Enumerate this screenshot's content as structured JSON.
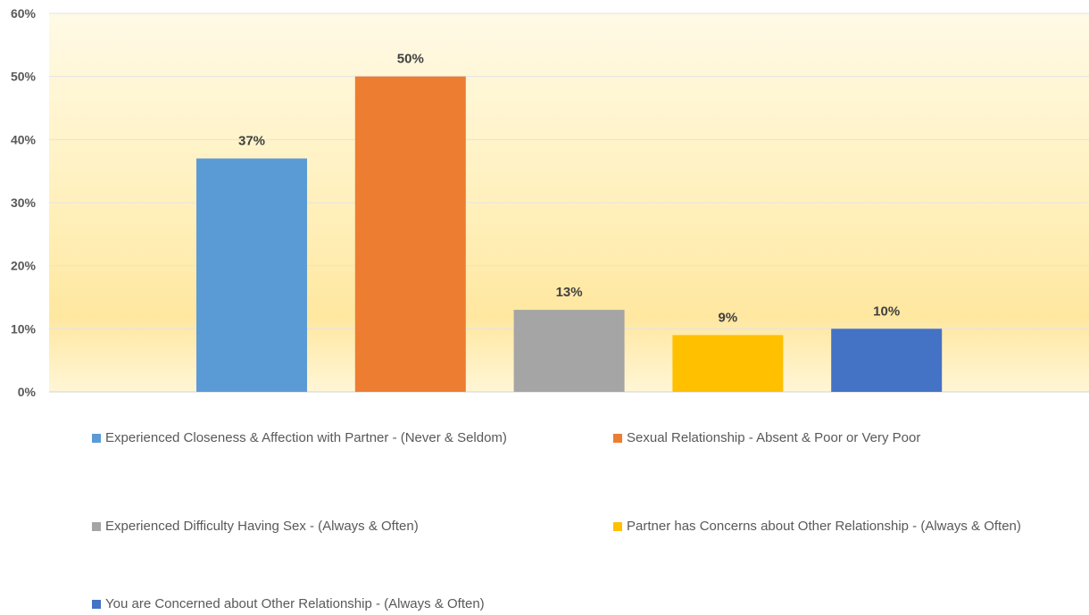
{
  "chart_data": {
    "type": "bar",
    "title": "",
    "xlabel": "",
    "ylabel": "",
    "ylim": [
      0,
      60
    ],
    "yticks": [
      0,
      10,
      20,
      30,
      40,
      50,
      60
    ],
    "ytick_labels": [
      "0%",
      "10%",
      "20%",
      "30%",
      "40%",
      "50%",
      "60%"
    ],
    "grid": true,
    "legend_position": "bottom",
    "series": [
      {
        "name": "Experienced Closeness & Affection with Partner - (Never & Seldom)",
        "value": 37,
        "label": "37%",
        "color": "#5B9BD5"
      },
      {
        "name": "Sexual Relationship - Absent & Poor or Very Poor",
        "value": 50,
        "label": "50%",
        "color": "#ED7D31"
      },
      {
        "name": "Experienced Difficulty Having Sex - (Always & Often)",
        "value": 13,
        "label": "13%",
        "color": "#A5A5A5"
      },
      {
        "name": "Partner has Concerns about Other Relationship - (Always & Often)",
        "value": 9,
        "label": "9%",
        "color": "#FFC000"
      },
      {
        "name": "You are Concerned about Other Relationship - (Always & Often)",
        "value": 10,
        "label": "10%",
        "color": "#4472C4"
      }
    ]
  }
}
